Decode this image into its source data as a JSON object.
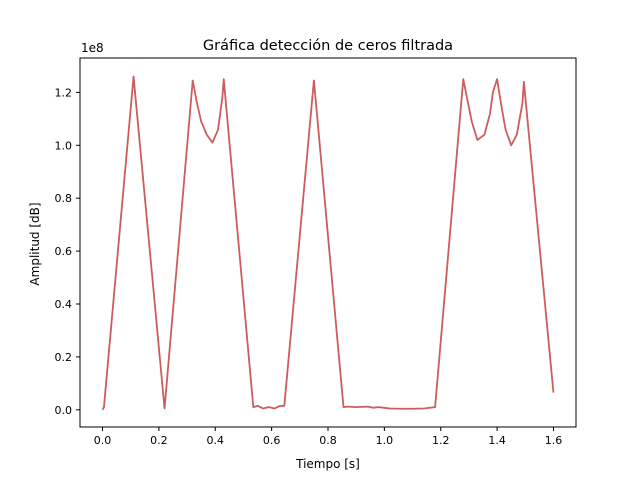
{
  "chart_data": {
    "type": "line",
    "title": "Gráfica detección de ceros filtrada",
    "xlabel": "Tiempo [s]",
    "ylabel": "Amplitud [dB]",
    "y_offset_label": "1e8",
    "xlim": [
      -0.08,
      1.68
    ],
    "ylim": [
      -0.065,
      1.33
    ],
    "xticks": [
      0.0,
      0.2,
      0.4,
      0.6,
      0.8,
      1.0,
      1.2,
      1.4,
      1.6
    ],
    "xtick_labels": [
      "0.0",
      "0.2",
      "0.4",
      "0.6",
      "0.8",
      "1.0",
      "1.2",
      "1.4",
      "1.6"
    ],
    "yticks": [
      0.0,
      0.2,
      0.4,
      0.6,
      0.8,
      1.0,
      1.2
    ],
    "ytick_labels": [
      "0.0",
      "0.2",
      "0.4",
      "0.6",
      "0.8",
      "1.0",
      "1.2"
    ],
    "grid": false,
    "series_color": "#cd5c5c",
    "series": [
      {
        "x": [
          0.0,
          0.005,
          0.11,
          0.22,
          0.32,
          0.335,
          0.35,
          0.37,
          0.39,
          0.41,
          0.425,
          0.43,
          0.535,
          0.55,
          0.57,
          0.59,
          0.61,
          0.63,
          0.645,
          0.75,
          0.855,
          0.87,
          0.9,
          0.94,
          0.96,
          0.98,
          1.02,
          1.06,
          1.1,
          1.14,
          1.18,
          1.28,
          1.295,
          1.31,
          1.33,
          1.355,
          1.375,
          1.385,
          1.4,
          1.415,
          1.43,
          1.45,
          1.47,
          1.49,
          1.495,
          1.6
        ],
        "values": [
          0.0,
          0.01,
          1.26,
          0.005,
          1.245,
          1.16,
          1.09,
          1.04,
          1.01,
          1.06,
          1.18,
          1.25,
          0.01,
          0.015,
          0.005,
          0.01,
          0.005,
          0.015,
          0.015,
          1.245,
          0.01,
          0.012,
          0.01,
          0.012,
          0.008,
          0.01,
          0.005,
          0.004,
          0.004,
          0.005,
          0.01,
          1.25,
          1.17,
          1.09,
          1.02,
          1.04,
          1.12,
          1.2,
          1.25,
          1.15,
          1.06,
          1.0,
          1.04,
          1.16,
          1.24,
          0.065
        ]
      }
    ]
  }
}
